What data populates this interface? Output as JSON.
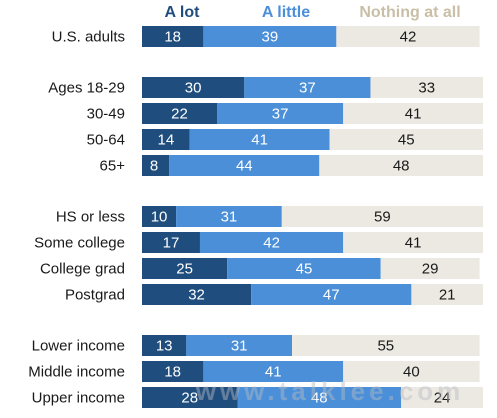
{
  "colors": {
    "a_lot": "#1f4e7e",
    "a_little": "#4a8fd8",
    "nothing": "#ece9e2",
    "legend_a_lot": "#1f4e7e",
    "legend_a_little": "#4a8fd8",
    "legend_nothing": "#c9bfa6"
  },
  "watermark": "www.talklee.com",
  "chart_data": {
    "type": "bar",
    "orientation": "horizontal",
    "stacked": true,
    "legend_position": "top",
    "xlim": [
      0,
      100
    ],
    "grid": false,
    "title": "",
    "xlabel": "",
    "ylabel": "",
    "series": [
      {
        "name": "A lot",
        "color": "#1f4e7e",
        "label_color": "#ffffff"
      },
      {
        "name": "A little",
        "color": "#4a8fd8",
        "label_color": "#ffffff"
      },
      {
        "name": "Nothing at all",
        "color": "#ece9e2",
        "label_color": "#1a1a1a"
      }
    ],
    "groups": [
      {
        "rows": [
          {
            "category": "U.S. adults",
            "values": [
              18,
              39,
              42
            ]
          }
        ]
      },
      {
        "rows": [
          {
            "category": "Ages 18-29",
            "values": [
              30,
              37,
              33
            ]
          },
          {
            "category": "30-49",
            "values": [
              22,
              37,
              41
            ]
          },
          {
            "category": "50-64",
            "values": [
              14,
              41,
              45
            ]
          },
          {
            "category": "65+",
            "values": [
              8,
              44,
              48
            ]
          }
        ]
      },
      {
        "rows": [
          {
            "category": "HS or less",
            "values": [
              10,
              31,
              59
            ]
          },
          {
            "category": "Some college",
            "values": [
              17,
              42,
              41
            ]
          },
          {
            "category": "College grad",
            "values": [
              25,
              45,
              29
            ]
          },
          {
            "category": "Postgrad",
            "values": [
              32,
              47,
              21
            ]
          }
        ]
      },
      {
        "rows": [
          {
            "category": "Lower income",
            "values": [
              13,
              31,
              55
            ]
          },
          {
            "category": "Middle income",
            "values": [
              18,
              41,
              40
            ]
          },
          {
            "category": "Upper income",
            "values": [
              28,
              48,
              24
            ]
          }
        ]
      }
    ]
  }
}
